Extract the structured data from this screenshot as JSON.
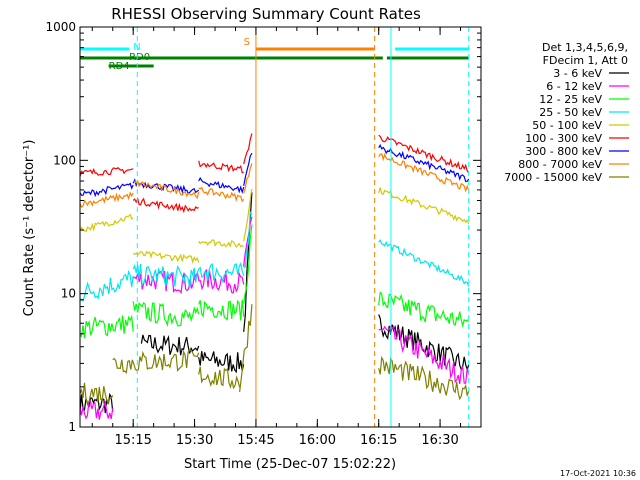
{
  "chart_data": {
    "type": "line",
    "title": "RHESSI Observing Summary Count Rates",
    "xlabel": "Start Time (25-Dec-07 15:02:22)",
    "ylabel": "Count Rate (s⁻¹ detector⁻¹)",
    "yscale": "log",
    "ylim": [
      1,
      1000
    ],
    "x_range_minutes": [
      "15:02",
      "16:40"
    ],
    "x_ticks": [
      "15:15",
      "15:30",
      "15:45",
      "16:00",
      "16:15",
      "16:30"
    ],
    "y_ticks": [
      "1",
      "10",
      "100",
      "1000"
    ],
    "legend": {
      "placement": "right",
      "header": [
        "Det 1,3,4,5,6,9,",
        "FDecim 1, Att 0"
      ],
      "entries": [
        {
          "label": "3 - 6 keV",
          "color": "#000000"
        },
        {
          "label": "6 - 12 keV",
          "color": "#ff00ff"
        },
        {
          "label": "12 - 25 keV",
          "color": "#00ff00"
        },
        {
          "label": "25 - 50 keV",
          "color": "#00e5ee"
        },
        {
          "label": "50 - 100 keV",
          "color": "#d4c800"
        },
        {
          "label": "100 - 300 keV",
          "color": "#ff0000"
        },
        {
          "label": "300 - 800 keV",
          "color": "#0000ff"
        },
        {
          "label": "800 - 7000 keV",
          "color": "#ff8000"
        },
        {
          "label": "7000 - 15000 keV",
          "color": "#808000"
        }
      ]
    },
    "annotations": {
      "flags": [
        "N",
        "RD0",
        "RD4",
        "S"
      ],
      "timestamp": "17-Oct-2021 10:36"
    },
    "series": [
      {
        "name": "3 - 6 keV",
        "color": "#000000",
        "segments": [
          {
            "t": [
              "15:02",
              "15:10"
            ],
            "y": [
              1.5,
              1.5
            ]
          },
          {
            "t": [
              "15:17",
              "15:31"
            ],
            "y": [
              4.2,
              4.0
            ]
          },
          {
            "t": [
              "15:31",
              "15:42"
            ],
            "y": [
              3.2,
              3.0
            ]
          },
          {
            "t": [
              "15:42",
              "15:44"
            ],
            "y": [
              5.0,
              50
            ]
          },
          {
            "t": [
              "16:15",
              "16:37"
            ],
            "y": [
              6.0,
              2.8
            ]
          }
        ]
      },
      {
        "name": "6 - 12 keV",
        "color": "#ff00ff",
        "segments": [
          {
            "t": [
              "15:02",
              "15:10"
            ],
            "y": [
              1.3,
              1.3
            ]
          },
          {
            "t": [
              "15:15",
              "15:30"
            ],
            "y": [
              13,
              12
            ]
          },
          {
            "t": [
              "15:30",
              "15:42"
            ],
            "y": [
              13,
              12
            ]
          },
          {
            "t": [
              "15:42",
              "15:44"
            ],
            "y": [
              14,
              40
            ]
          },
          {
            "t": [
              "16:15",
              "16:37"
            ],
            "y": [
              5.5,
              2.3
            ]
          }
        ]
      },
      {
        "name": "12 - 25 keV",
        "color": "#00ff00",
        "segments": [
          {
            "t": [
              "15:02",
              "15:15"
            ],
            "y": [
              5.5,
              6.0
            ]
          },
          {
            "t": [
              "15:15",
              "15:31"
            ],
            "y": [
              7.5,
              6.5
            ]
          },
          {
            "t": [
              "15:31",
              "15:42"
            ],
            "y": [
              8.0,
              7.5
            ]
          },
          {
            "t": [
              "15:42",
              "15:44"
            ],
            "y": [
              8.0,
              30
            ]
          },
          {
            "t": [
              "16:15",
              "16:37"
            ],
            "y": [
              9.0,
              6.0
            ]
          }
        ]
      },
      {
        "name": "25 - 50 keV",
        "color": "#00e5ee",
        "segments": [
          {
            "t": [
              "15:02",
              "15:15"
            ],
            "y": [
              10,
              13
            ]
          },
          {
            "t": [
              "15:15",
              "15:31"
            ],
            "y": [
              14,
              13
            ]
          },
          {
            "t": [
              "15:31",
              "15:42"
            ],
            "y": [
              15,
              14
            ]
          },
          {
            "t": [
              "15:42",
              "15:44"
            ],
            "y": [
              15,
              45
            ]
          },
          {
            "t": [
              "16:15",
              "16:37"
            ],
            "y": [
              25,
              12
            ]
          }
        ]
      },
      {
        "name": "50 - 100 keV",
        "color": "#d4c800",
        "segments": [
          {
            "t": [
              "15:02",
              "15:15"
            ],
            "y": [
              30,
              38
            ]
          },
          {
            "t": [
              "15:15",
              "15:31"
            ],
            "y": [
              20,
              18
            ]
          },
          {
            "t": [
              "15:31",
              "15:42"
            ],
            "y": [
              25,
              23
            ]
          },
          {
            "t": [
              "15:42",
              "15:44"
            ],
            "y": [
              25,
              60
            ]
          },
          {
            "t": [
              "16:15",
              "16:37"
            ],
            "y": [
              60,
              35
            ]
          }
        ]
      },
      {
        "name": "100 - 300 keV",
        "color": "#ff0000",
        "segments": [
          {
            "t": [
              "15:02",
              "15:15"
            ],
            "y": [
              80,
              85
            ]
          },
          {
            "t": [
              "15:15",
              "15:31"
            ],
            "y": [
              50,
              42
            ]
          },
          {
            "t": [
              "15:31",
              "15:42"
            ],
            "y": [
              95,
              85
            ]
          },
          {
            "t": [
              "15:42",
              "15:44"
            ],
            "y": [
              90,
              160
            ]
          },
          {
            "t": [
              "16:15",
              "16:37"
            ],
            "y": [
              150,
              85
            ]
          }
        ]
      },
      {
        "name": "300 - 800 keV",
        "color": "#0000ff",
        "segments": [
          {
            "t": [
              "15:02",
              "15:15"
            ],
            "y": [
              55,
              65
            ]
          },
          {
            "t": [
              "15:15",
              "15:31"
            ],
            "y": [
              68,
              58
            ]
          },
          {
            "t": [
              "15:31",
              "15:42"
            ],
            "y": [
              70,
              60
            ]
          },
          {
            "t": [
              "15:42",
              "15:44"
            ],
            "y": [
              65,
              120
            ]
          },
          {
            "t": [
              "16:15",
              "16:37"
            ],
            "y": [
              125,
              72
            ]
          }
        ]
      },
      {
        "name": "800 - 7000 keV",
        "color": "#ff8000",
        "segments": [
          {
            "t": [
              "15:02",
              "15:15"
            ],
            "y": [
              47,
              55
            ]
          },
          {
            "t": [
              "15:15",
              "15:31"
            ],
            "y": [
              68,
              55
            ]
          },
          {
            "t": [
              "15:31",
              "15:42"
            ],
            "y": [
              60,
              52
            ]
          },
          {
            "t": [
              "15:42",
              "15:44"
            ],
            "y": [
              55,
              100
            ]
          },
          {
            "t": [
              "16:15",
              "16:37"
            ],
            "y": [
              110,
              60
            ]
          }
        ]
      },
      {
        "name": "7000 - 15000 keV",
        "color": "#808000",
        "segments": [
          {
            "t": [
              "15:02",
              "15:10"
            ],
            "y": [
              1.8,
              1.8
            ]
          },
          {
            "t": [
              "15:10",
              "15:31"
            ],
            "y": [
              3.0,
              3.2
            ]
          },
          {
            "t": [
              "15:31",
              "15:41"
            ],
            "y": [
              2.5,
              2.2
            ]
          },
          {
            "t": [
              "15:41",
              "15:44"
            ],
            "y": [
              2.0,
              8.0
            ]
          },
          {
            "t": [
              "16:15",
              "16:37"
            ],
            "y": [
              3.0,
              1.8
            ]
          }
        ]
      }
    ],
    "flag_bars": [
      {
        "name": "N",
        "color": "#00ffff",
        "segments": [
          [
            "15:02",
            "15:14"
          ],
          [
            "16:19",
            "16:37"
          ]
        ],
        "level": "top"
      },
      {
        "name": "RD0",
        "color": "#008000",
        "segments": [
          [
            "15:02",
            "16:16"
          ],
          [
            "16:17",
            "16:37"
          ]
        ],
        "level": "middle"
      },
      {
        "name": "RD4",
        "color": "#008000",
        "segments": [
          [
            "15:09",
            "15:20"
          ]
        ],
        "level": "lower"
      },
      {
        "name": "S",
        "color": "#ff8000",
        "segments": [
          [
            "15:45",
            "16:14"
          ]
        ],
        "level": "top"
      }
    ],
    "vertical_markers": [
      {
        "t": "15:16",
        "color": "#00ffff",
        "style": "dashed"
      },
      {
        "t": "15:45",
        "color": "#ff8000",
        "style": "solid"
      },
      {
        "t": "16:14",
        "color": "#ff8000",
        "style": "dashed"
      },
      {
        "t": "16:18",
        "color": "#00ffff",
        "style": "solid"
      },
      {
        "t": "16:37",
        "color": "#00ffff",
        "style": "dashed"
      }
    ]
  }
}
